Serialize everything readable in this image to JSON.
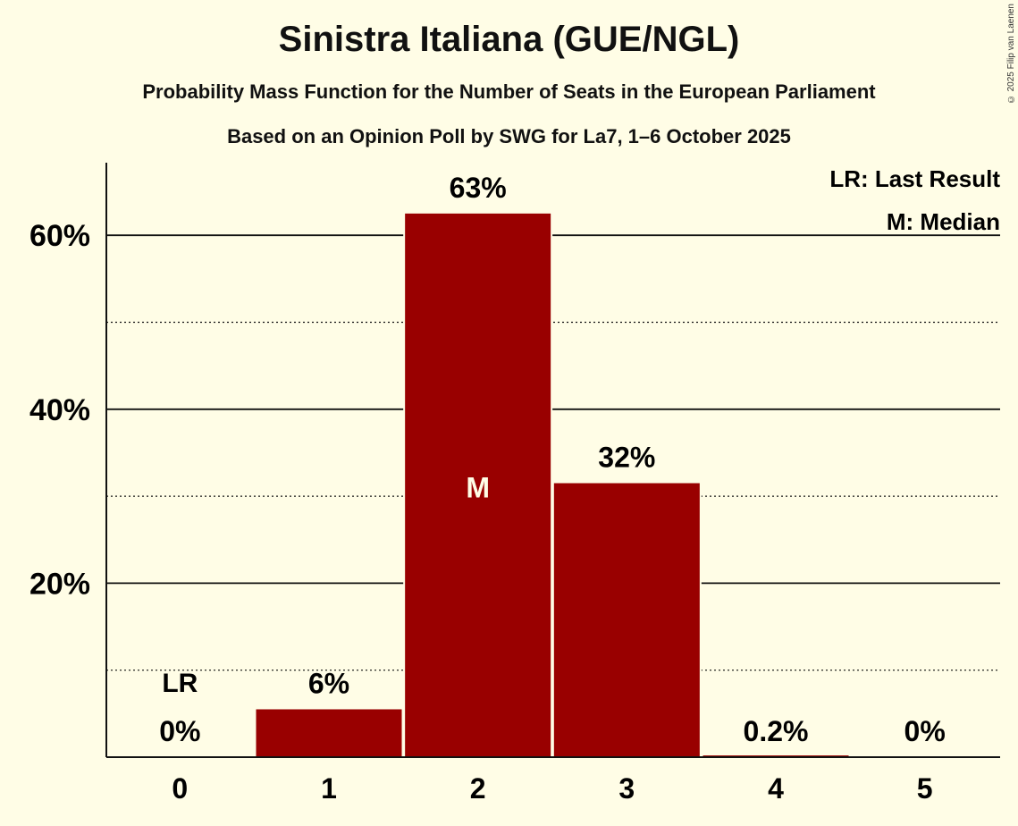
{
  "chart_data": {
    "type": "bar",
    "title": "Sinistra Italiana (GUE/NGL)",
    "subtitle": "Probability Mass Function for the Number of Seats in the European Parliament",
    "subtitle2": "Based on an Opinion Poll by SWG for La7, 1–6 October 2025",
    "categories": [
      "0",
      "1",
      "2",
      "3",
      "4",
      "5"
    ],
    "values": [
      0,
      5.5,
      62.5,
      31.5,
      0.2,
      0
    ],
    "data_labels": [
      "0%",
      "6%",
      "63%",
      "32%",
      "0.2%",
      "0%"
    ],
    "ylim": [
      0,
      68
    ],
    "yticks": [
      20,
      40,
      60
    ],
    "ytick_labels": [
      "20%",
      "40%",
      "60%"
    ],
    "minor_gridlines": [
      10,
      30,
      50
    ],
    "bar_color": "#990000",
    "last_result_index": 0,
    "last_result_marker": "LR",
    "median_index": 2,
    "median_marker": "M",
    "legend": [
      "LR: Last Result",
      "M: Median"
    ],
    "legend_position": "top-right",
    "copyright": "© 2025 Filip van Laenen"
  }
}
